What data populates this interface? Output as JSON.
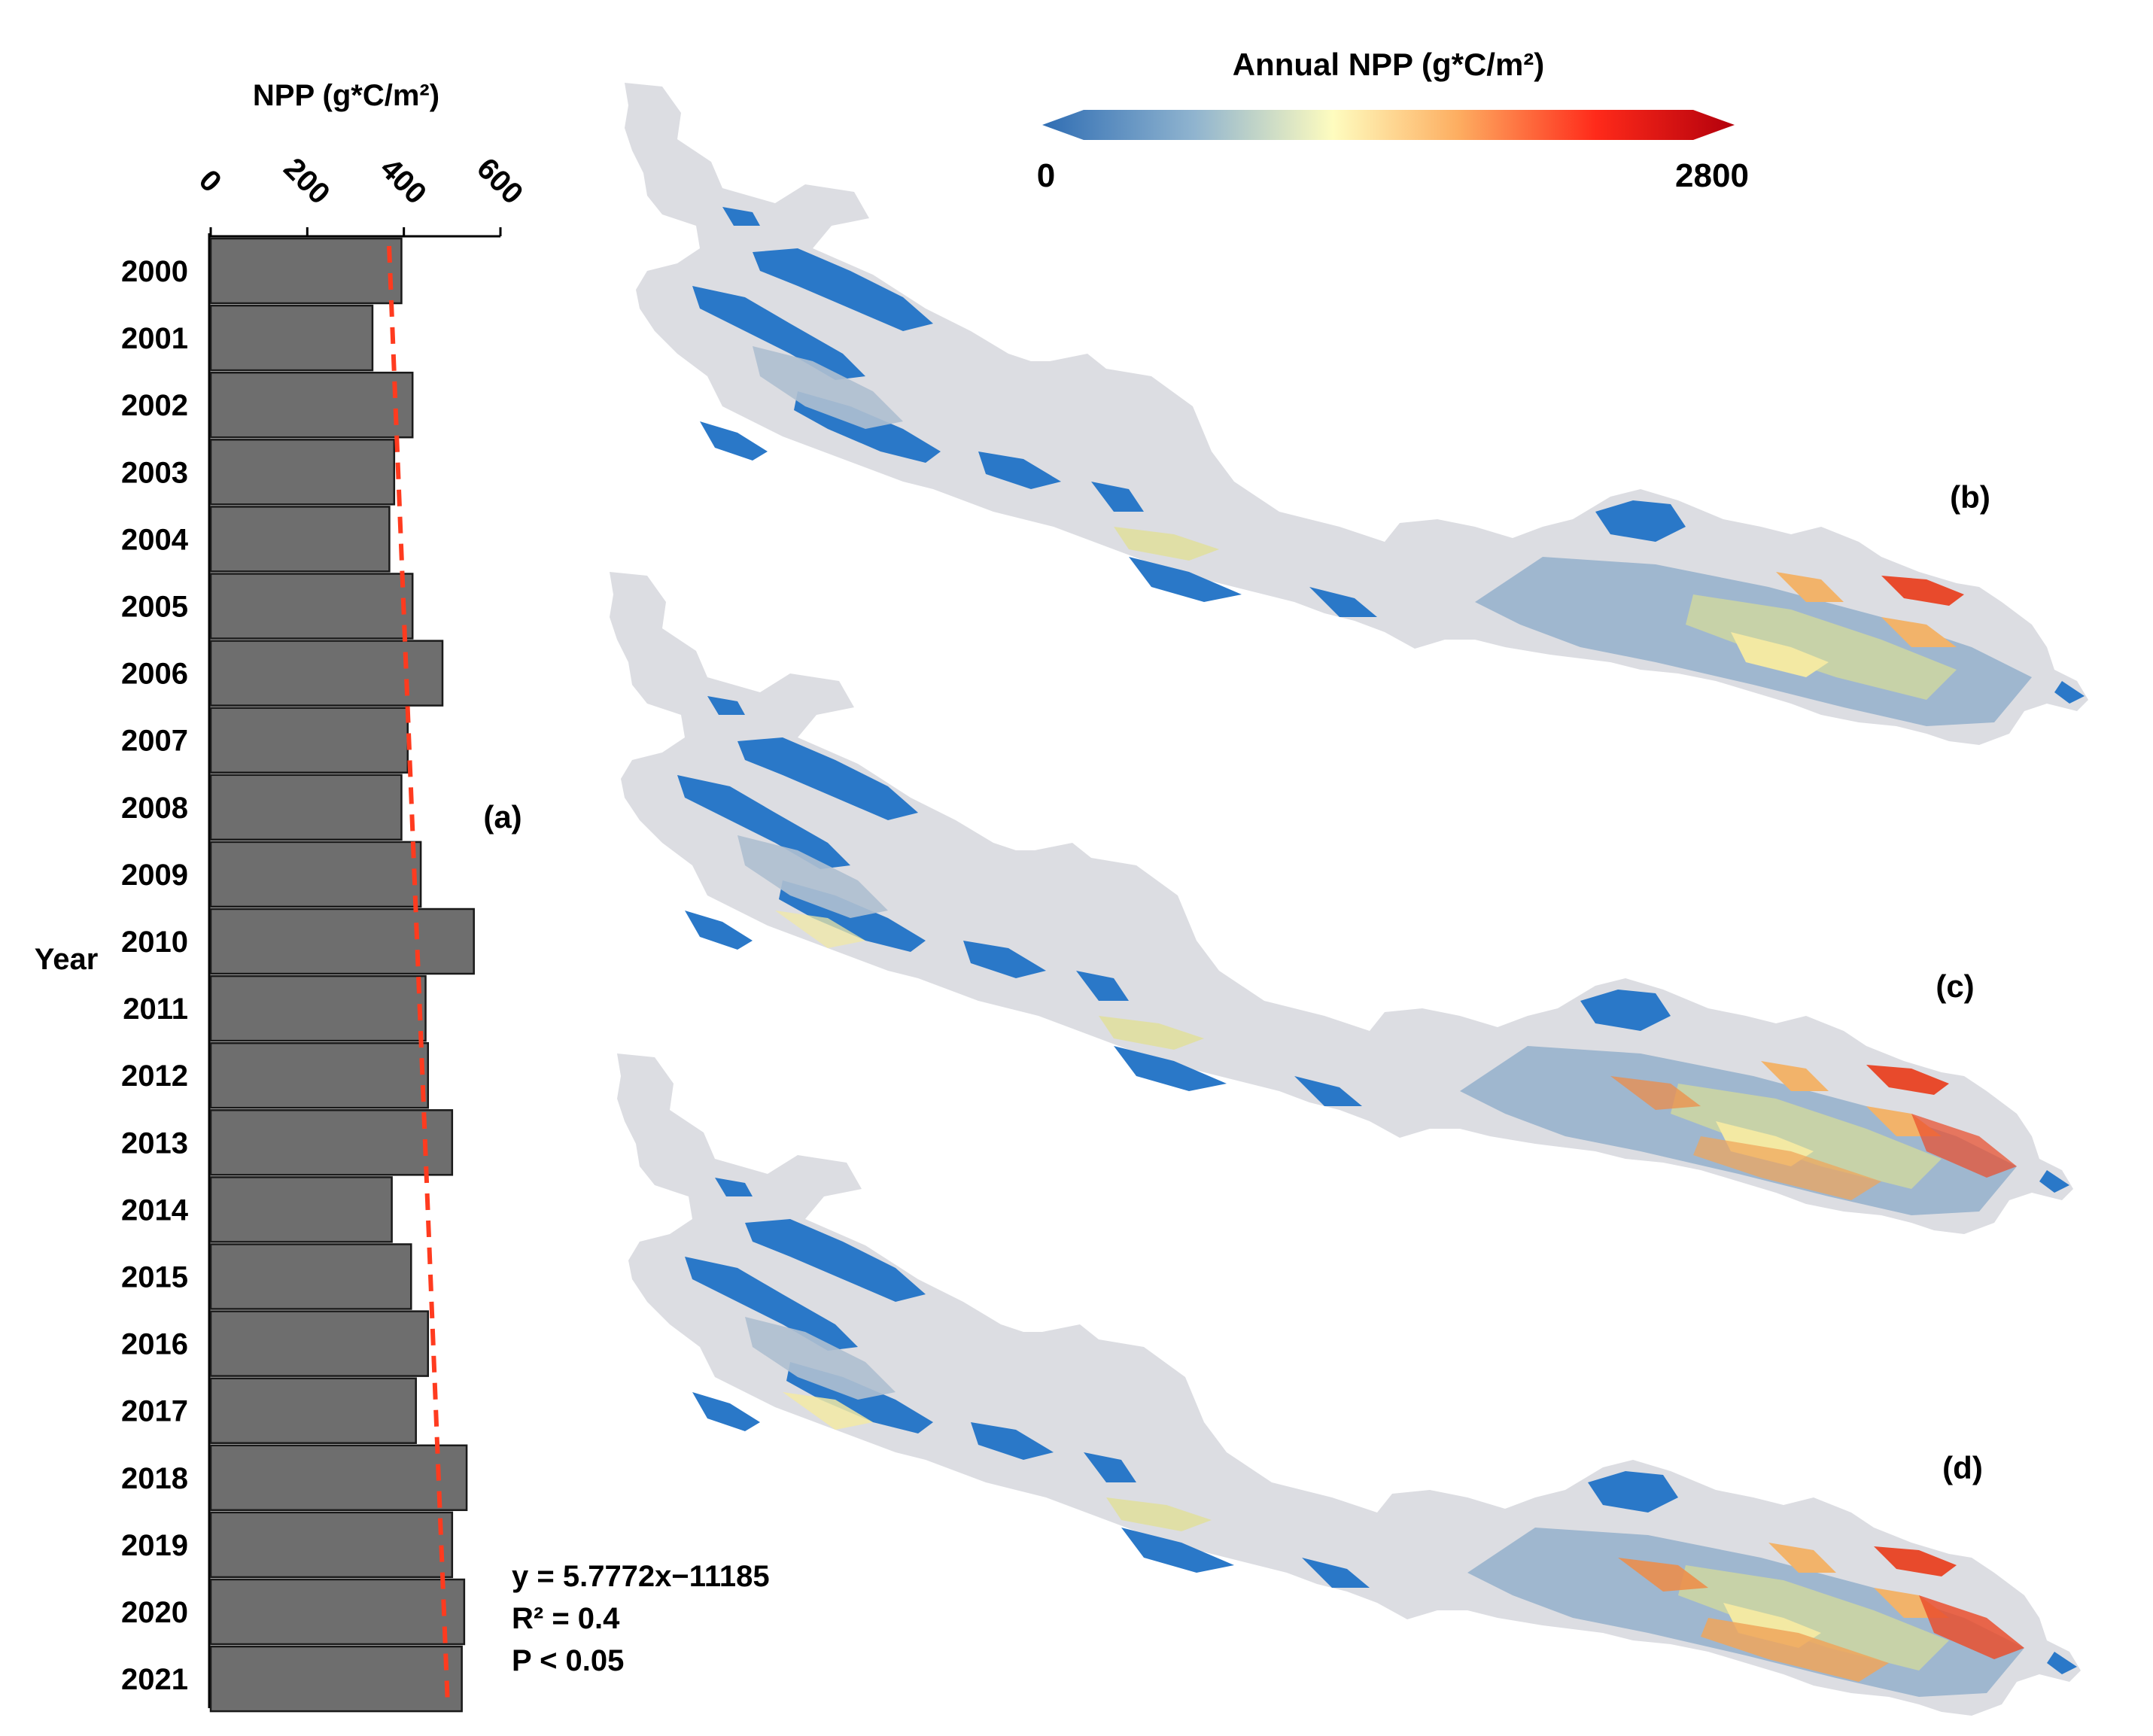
{
  "chart_data": [
    {
      "type": "bar",
      "orientation": "horizontal",
      "panel_label": "(a)",
      "xlabel": "NPP (g*C/m²)",
      "ylabel": "Year",
      "xlim": [
        0,
        600
      ],
      "xticks": [
        "0",
        "200",
        "400",
        "600"
      ],
      "categories": [
        "2000",
        "2001",
        "2002",
        "2003",
        "2004",
        "2005",
        "2006",
        "2007",
        "2008",
        "2009",
        "2010",
        "2011",
        "2012",
        "2013",
        "2014",
        "2015",
        "2016",
        "2017",
        "2018",
        "2019",
        "2020",
        "2021"
      ],
      "values": [
        395,
        335,
        418,
        380,
        370,
        418,
        480,
        408,
        395,
        435,
        545,
        445,
        450,
        500,
        375,
        415,
        450,
        425,
        530,
        500,
        525,
        520
      ],
      "bar_color": "#6e6e6e",
      "trendline": {
        "color": "#ff3b1f",
        "style": "dashed",
        "slope": 5.7772,
        "intercept": -11185
      },
      "annotations": [
        "y = 5.7772x−11185",
        "R² = 0.4",
        "P < 0.05"
      ]
    },
    {
      "type": "heatmap",
      "subtype": "map",
      "colorbar": {
        "title": "Annual NPP (g*C/m²)",
        "min_label": "0",
        "max_label": "2800",
        "colors": [
          "#2f6db3",
          "#90b4cf",
          "#fefcbf",
          "#fdae61",
          "#ff2a1a",
          "#b3000c"
        ]
      },
      "panels": [
        "(b)",
        "(c)",
        "(d)"
      ]
    }
  ]
}
